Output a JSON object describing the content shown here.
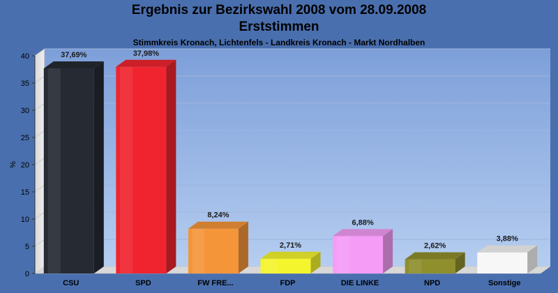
{
  "header": {
    "title_line1": "Ergebnis zur Bezirkswahl 2008 vom 28.09.2008",
    "title_line2": "Erststimmen",
    "subtitle": "Stimmkreis Kronach, Lichtenfels - Landkreis Kronach - Markt Nordhalben"
  },
  "chart_data": {
    "type": "bar",
    "title": "Ergebnis zur Bezirkswahl 2008 vom 28.09.2008 — Erststimmen",
    "subtitle": "Stimmkreis Kronach, Lichtenfels - Landkreis Kronach - Markt Nordhalben",
    "categories": [
      "CSU",
      "SPD",
      "FW FRE...",
      "FDP",
      "DIE LINKE",
      "NPD",
      "Sonstige"
    ],
    "values": [
      37.69,
      37.98,
      8.24,
      2.71,
      6.88,
      2.62,
      3.88
    ],
    "value_labels": [
      "37,69%",
      "37,98%",
      "8,24%",
      "2,71%",
      "6,88%",
      "2,62%",
      "3,88%"
    ],
    "colors": [
      "#252a33",
      "#f0242e",
      "#f5953a",
      "#f5f52e",
      "#f59cf7",
      "#8f8f2e",
      "#f7f7f7"
    ],
    "ylabel": "%",
    "xlabel": "",
    "ylim": [
      0,
      40
    ],
    "yticks": [
      0,
      5,
      10,
      15,
      20,
      25,
      30,
      35,
      40
    ],
    "grid": true,
    "legend": "none"
  }
}
